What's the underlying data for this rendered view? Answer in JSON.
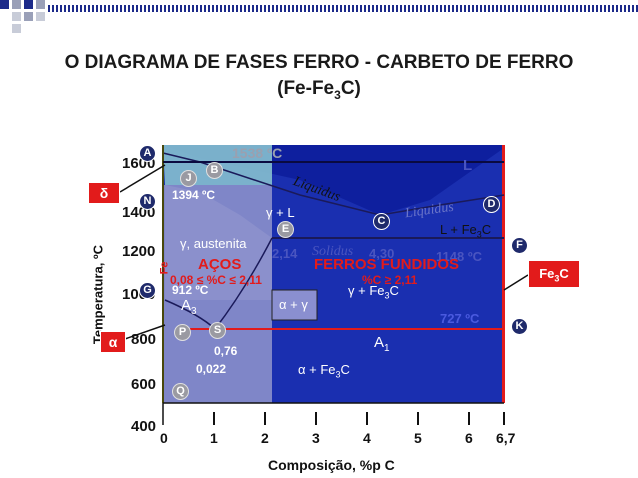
{
  "title": {
    "line1": "O DIAGRAMA DE FASES FERRO - CARBETO DE FERRO",
    "line2_prefix": "(Fe-Fe",
    "line2_sub": "3",
    "line2_suffix": "C)"
  },
  "axes": {
    "y_title": "Temperatura, ºC",
    "x_title": "Composição, %p C",
    "y_ticks": [
      "1600",
      "1400",
      "1200",
      "1000",
      "800",
      "600",
      "400"
    ],
    "x_ticks": [
      "0",
      "1",
      "2",
      "3",
      "4",
      "5",
      "6",
      "6,7"
    ],
    "x_range": [
      0,
      6.7
    ],
    "y_range": [
      400,
      1600
    ]
  },
  "points": [
    "A",
    "B",
    "J",
    "N",
    "C",
    "D",
    "E",
    "F",
    "G",
    "S",
    "P",
    "K",
    "Q"
  ],
  "phase_labels": {
    "t1538": "1538 ºC",
    "t1394": "1394 ºC",
    "t912": "912 ºC",
    "t1148": "1148 ºC",
    "t727": "727 ºC",
    "L": "L",
    "liquidus1": "Liquidus",
    "liquidus2": "Liquidus",
    "solidus": "Solidus",
    "gamma_L": "γ + L",
    "gamma_austenita": "γ, austenita",
    "c_2_14": "2,14",
    "c_4_30": "4,30",
    "L_Fe3C_prefix": "L + Fe",
    "L_Fe3C_sub": "3",
    "L_Fe3C_suffix": "C",
    "gamma_Fe3C_prefix": "γ + Fe",
    "gamma_Fe3C_sub": "3",
    "gamma_Fe3C_suffix": "C",
    "alpha_gamma": "α + γ",
    "alpha_Fe3C_prefix": "α + Fe",
    "alpha_Fe3C_sub": "3",
    "alpha_Fe3C_suffix": "C",
    "A3_main": "A",
    "A3_sub": "3",
    "A1_main": "A",
    "A1_sub": "1",
    "c_0_76": "0,76",
    "c_0_022": "0,022",
    "delta_side": "δ",
    "alpha_side": "α",
    "fe3c_side_main": "Fe",
    "fe3c_side_sub": "3",
    "fe3c_side_suffix": "C",
    "fe_vertical": "Fe"
  },
  "regions": {
    "acos_title": "AÇOS",
    "acos_range": "0,08 ≤ %C ≤ 2,11",
    "ferros_title": "FERROS FUNDIDOS",
    "ferros_range": "%C ≥ 2,11"
  },
  "colors": {
    "deep_blue": "#1a2fb0",
    "light_region": "#7a84c9",
    "cyan_liquid": "#7fb7cc",
    "red": "#e21b1b",
    "yellow": "#f0f000"
  }
}
